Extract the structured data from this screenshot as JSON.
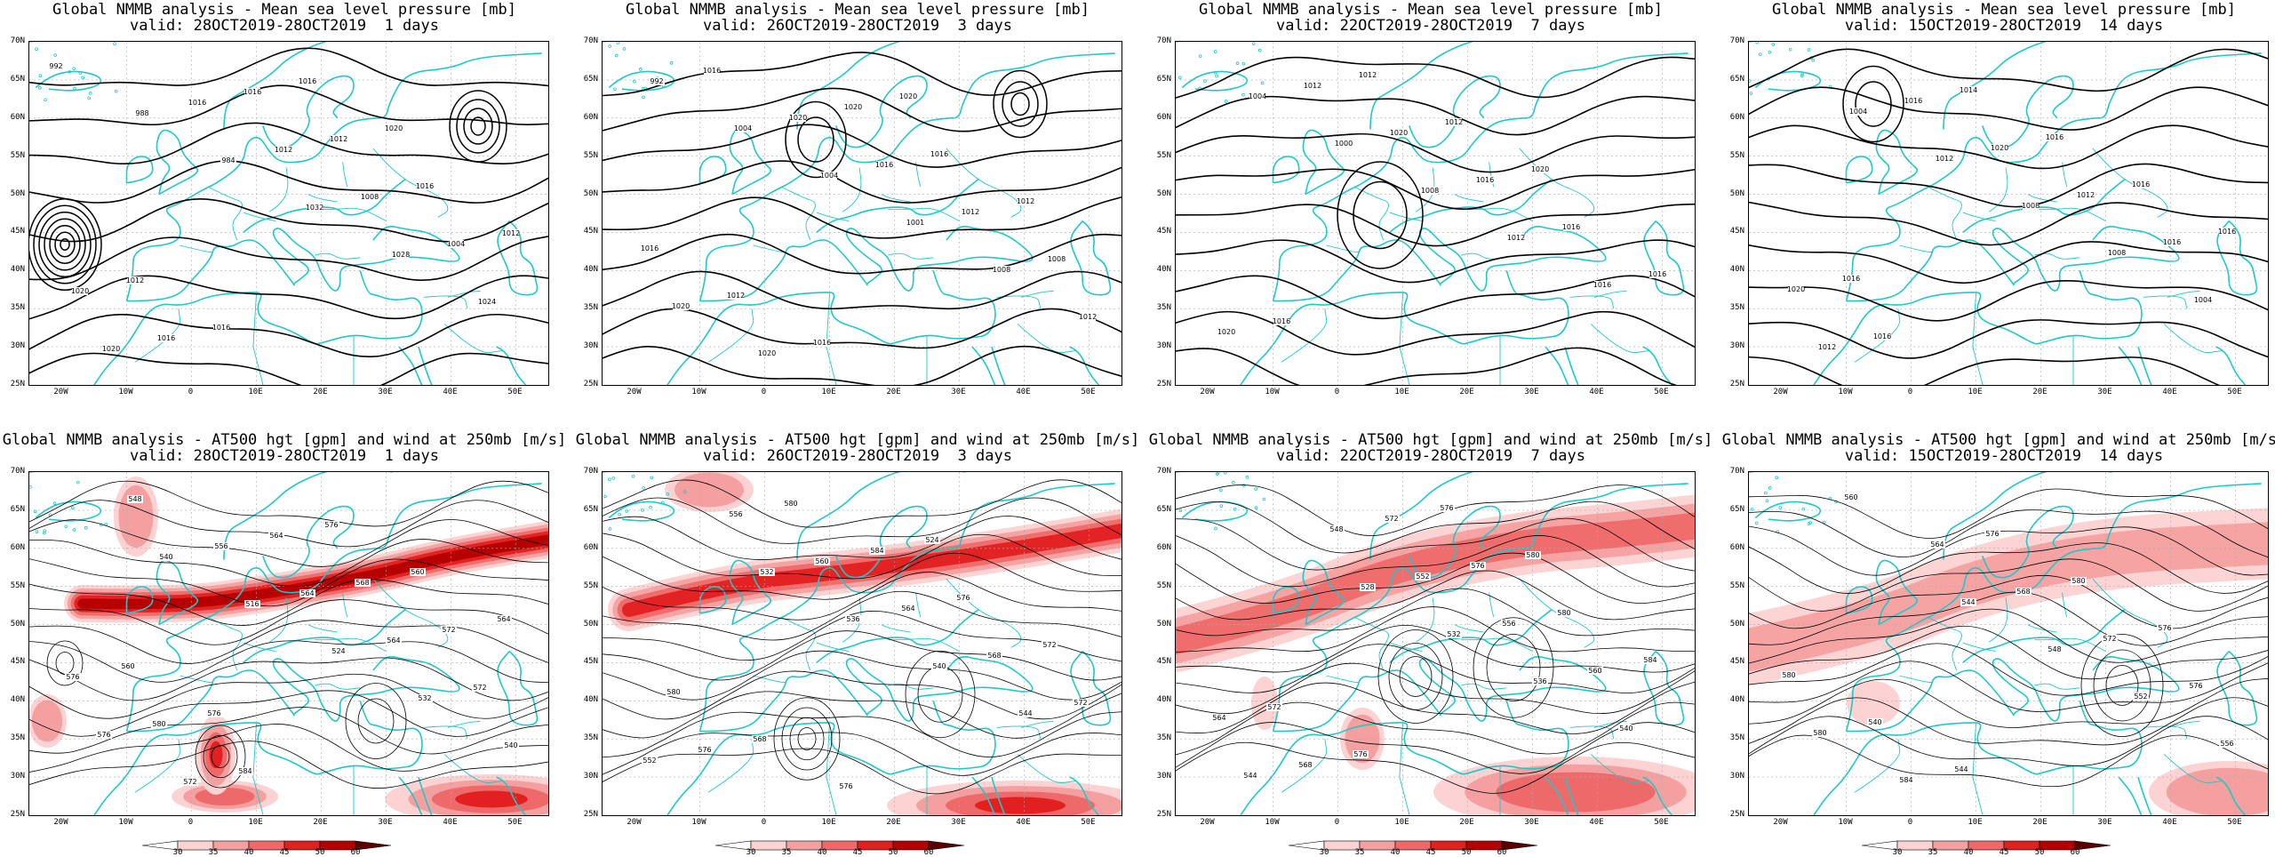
{
  "panels": [
    {
      "id": "mslp-1",
      "row": 0,
      "col": 0,
      "title1": "Global NMMB analysis - Mean sea level pressure [mb]",
      "title2": "valid: 28OCT2019-28OCT2019  1 days",
      "labels": [
        "992",
        "988",
        "984",
        "1032",
        "1028",
        "1024",
        "1020",
        "1016",
        "1012",
        "1008",
        "1004",
        "1020",
        "1016",
        "1016",
        "1012",
        "1016",
        "1012",
        "1012",
        "1016",
        "1016",
        "1020"
      ]
    },
    {
      "id": "mslp-3",
      "row": 0,
      "col": 1,
      "title1": "Global NMMB analysis - Mean sea level pressure [mb]",
      "title2": "valid: 26OCT2019-28OCT2019  3 days",
      "labels": [
        "992",
        "1004",
        "1004",
        "1001",
        "1008",
        "1012",
        "1016",
        "1020",
        "1016",
        "1012",
        "1008",
        "1020",
        "1020",
        "1020",
        "1016",
        "1012",
        "1016",
        "1012",
        "1016",
        "1020"
      ]
    },
    {
      "id": "mslp-7",
      "row": 0,
      "col": 2,
      "title1": "Global NMMB analysis - Mean sea level pressure [mb]",
      "title2": "valid: 22OCT2019-28OCT2019  7 days",
      "labels": [
        "1004",
        "1000",
        "1008",
        "1012",
        "1016",
        "1020",
        "1012",
        "1020",
        "1016",
        "1016",
        "1016",
        "1016",
        "1012",
        "1012",
        "1020"
      ]
    },
    {
      "id": "mslp-14",
      "row": 0,
      "col": 3,
      "title1": "Global NMMB analysis - Mean sea level pressure [mb]",
      "title2": "valid: 15OCT2019-28OCT2019  14 days",
      "labels": [
        "1004",
        "1012",
        "1008",
        "1008",
        "1004",
        "1012",
        "1016",
        "1020",
        "1012",
        "1016",
        "1020",
        "1016",
        "1014",
        "1016",
        "1016",
        "1016",
        "1016"
      ]
    },
    {
      "id": "z500-1",
      "row": 1,
      "col": 0,
      "title1": "Global NMMB analysis - AT500 hgt [gpm] and wind at 250mb [m/s]",
      "title2": "valid: 28OCT2019-28OCT2019  1 days",
      "labels": [
        "540",
        "516",
        "524",
        "532",
        "540",
        "548",
        "556",
        "564",
        "564",
        "572",
        "576",
        "572",
        "564",
        "568",
        "572",
        "576",
        "580",
        "584",
        "576",
        "560",
        "564",
        "560",
        "576"
      ]
    },
    {
      "id": "z500-3",
      "row": 1,
      "col": 1,
      "title1": "Global NMMB analysis - AT500 hgt [gpm] and wind at 250mb [m/s]",
      "title2": "valid: 26OCT2019-28OCT2019  3 days",
      "labels": [
        "532",
        "536",
        "540",
        "544",
        "552",
        "556",
        "560",
        "564",
        "568",
        "572",
        "576",
        "580",
        "584",
        "576",
        "572",
        "580",
        "568",
        "576",
        "524"
      ]
    },
    {
      "id": "z500-7",
      "row": 1,
      "col": 2,
      "title1": "Global NMMB analysis - AT500 hgt [gpm] and wind at 250mb [m/s]",
      "title2": "valid: 22OCT2019-28OCT2019  7 days",
      "labels": [
        "528",
        "532",
        "536",
        "540",
        "544",
        "548",
        "552",
        "556",
        "560",
        "564",
        "568",
        "572",
        "576",
        "580",
        "584",
        "572",
        "576",
        "576",
        "580"
      ]
    },
    {
      "id": "z500-14",
      "row": 1,
      "col": 3,
      "title1": "Global NMMB analysis - AT500 hgt [gpm] and wind at 250mb [m/s]",
      "title2": "valid: 15OCT2019-28OCT2019  14 days",
      "labels": [
        "544",
        "548",
        "552",
        "556",
        "560",
        "564",
        "568",
        "572",
        "576",
        "580",
        "584",
        "576",
        "580",
        "576",
        "580",
        "540",
        "544"
      ]
    }
  ],
  "lat_labels": [
    "70N",
    "65N",
    "60N",
    "55N",
    "50N",
    "45N",
    "40N",
    "35N",
    "30N",
    "25N"
  ],
  "lon_labels": [
    "20W",
    "10W",
    "0",
    "10E",
    "20E",
    "30E",
    "40E",
    "50E"
  ],
  "colorbar": {
    "labels": [
      "30",
      "35",
      "40",
      "45",
      "50",
      "60"
    ],
    "colors": [
      "#ffffff",
      "#fcd2d2",
      "#f5a0a0",
      "#ee6a6a",
      "#e22020",
      "#b40000",
      "#5a0000"
    ]
  },
  "colors": {
    "coast": "#1fc8c8",
    "contour": "#000000",
    "jet": "#e30000"
  }
}
